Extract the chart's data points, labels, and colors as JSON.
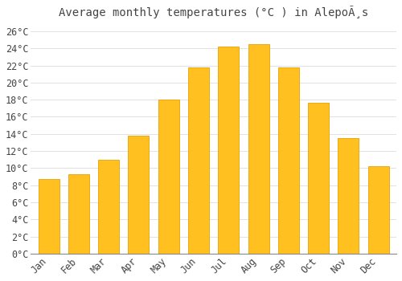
{
  "title": "Average monthly temperatures (°C ) in AlepoÃ¸s",
  "months": [
    "Jan",
    "Feb",
    "Mar",
    "Apr",
    "May",
    "Jun",
    "Jul",
    "Aug",
    "Sep",
    "Oct",
    "Nov",
    "Dec"
  ],
  "values": [
    8.7,
    9.3,
    11.0,
    13.8,
    18.0,
    21.8,
    24.2,
    24.5,
    21.8,
    17.6,
    13.5,
    10.2
  ],
  "bar_color": "#FFC020",
  "bar_edge_color": "#E8A000",
  "background_color": "#FFFFFF",
  "grid_color": "#DDDDDD",
  "text_color": "#444444",
  "ylim": [
    0,
    27
  ],
  "yticks": [
    0,
    2,
    4,
    6,
    8,
    10,
    12,
    14,
    16,
    18,
    20,
    22,
    24,
    26
  ],
  "title_fontsize": 10,
  "tick_fontsize": 8.5,
  "font_family": "monospace",
  "bar_width": 0.7
}
